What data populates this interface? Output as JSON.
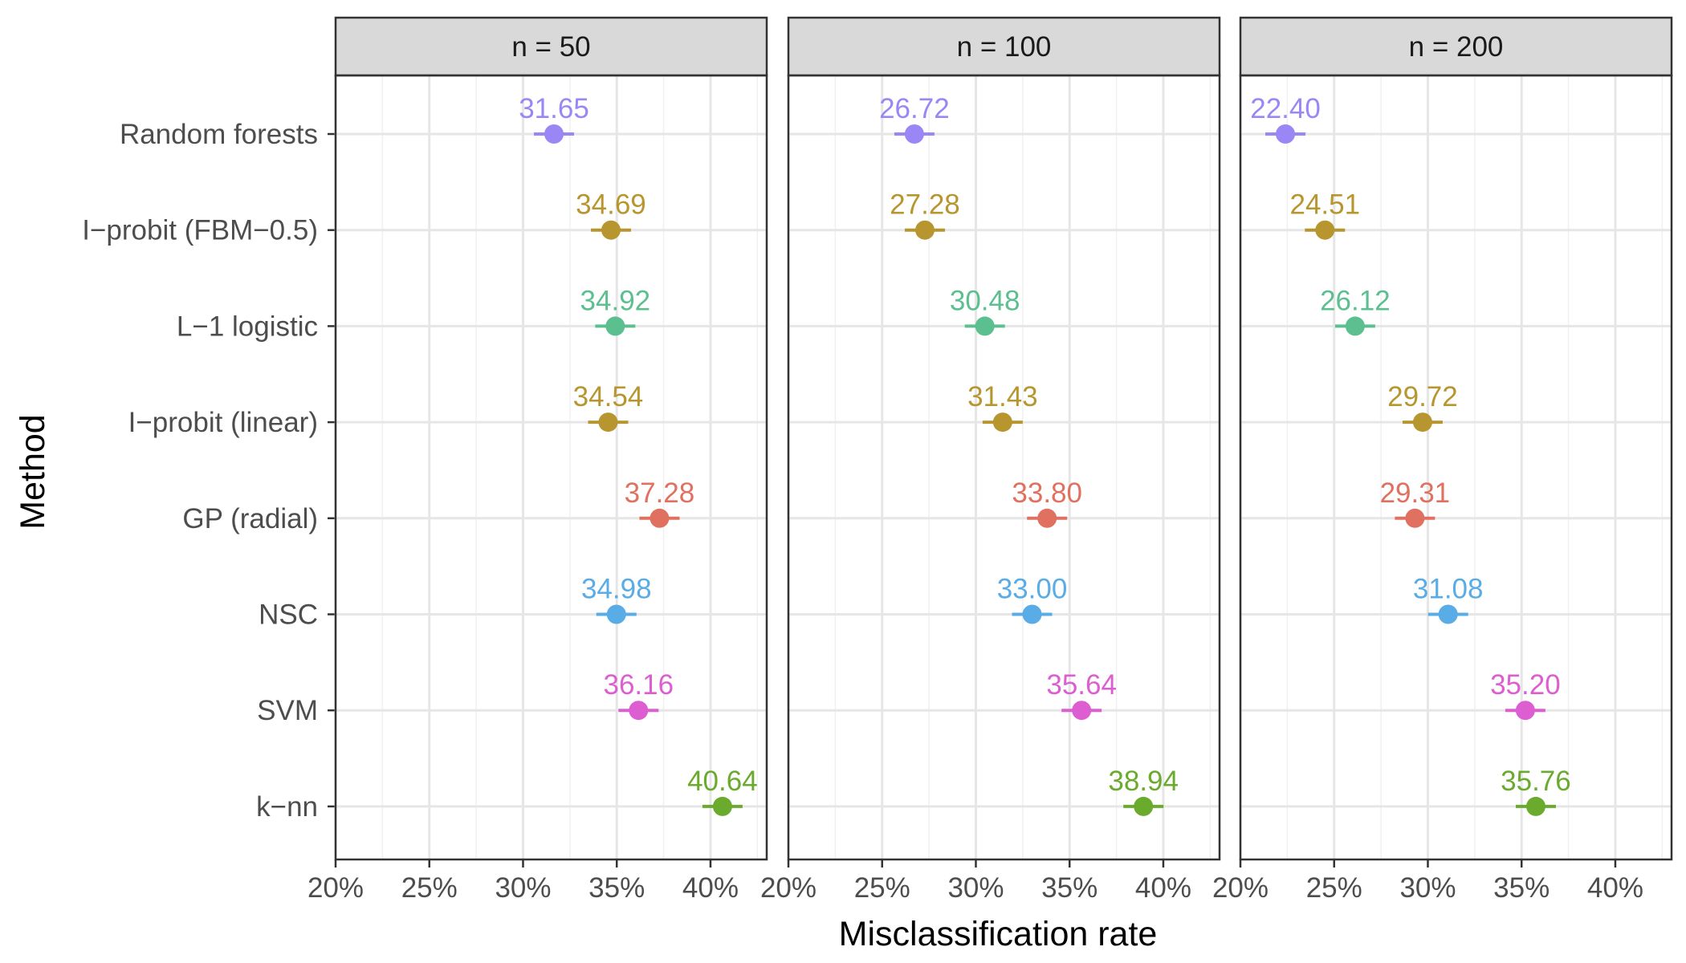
{
  "chart_data": {
    "type": "scatter",
    "xlabel": "Misclassification rate",
    "ylabel": "Method",
    "xlim": [
      20,
      43
    ],
    "x_ticks": [
      "20%",
      "25%",
      "30%",
      "35%",
      "40%"
    ],
    "x_tick_values": [
      20,
      25,
      30,
      35,
      40
    ],
    "categories": [
      "Random forests",
      "I−probit (FBM−0.5)",
      "L−1 logistic",
      "I−probit (linear)",
      "GP (radial)",
      "NSC",
      "SVM",
      "k−nn"
    ],
    "colors": [
      "#9a86f5",
      "#b8962f",
      "#5cbf8f",
      "#b8962f",
      "#e07060",
      "#5aace6",
      "#dc5ed0",
      "#6aab2e"
    ],
    "grid": true,
    "legend": "none",
    "panels": [
      {
        "label": "n = 50",
        "values": [
          31.65,
          34.69,
          34.92,
          34.54,
          37.28,
          34.98,
          36.16,
          40.64
        ],
        "labels": [
          "31.65",
          "34.69",
          "34.92",
          "34.54",
          "37.28",
          "34.98",
          "36.16",
          "40.64"
        ]
      },
      {
        "label": "n = 100",
        "values": [
          26.72,
          27.28,
          30.48,
          31.43,
          33.8,
          33.0,
          35.64,
          38.94
        ],
        "labels": [
          "26.72",
          "27.28",
          "30.48",
          "31.43",
          "33.80",
          "33.00",
          "35.64",
          "38.94"
        ]
      },
      {
        "label": "n = 200",
        "values": [
          22.4,
          24.51,
          26.12,
          29.72,
          29.31,
          31.08,
          35.2,
          35.76
        ],
        "labels": [
          "22.40",
          "24.51",
          "26.12",
          "29.72",
          "29.31",
          "31.08",
          "35.20",
          "35.76"
        ]
      }
    ]
  }
}
